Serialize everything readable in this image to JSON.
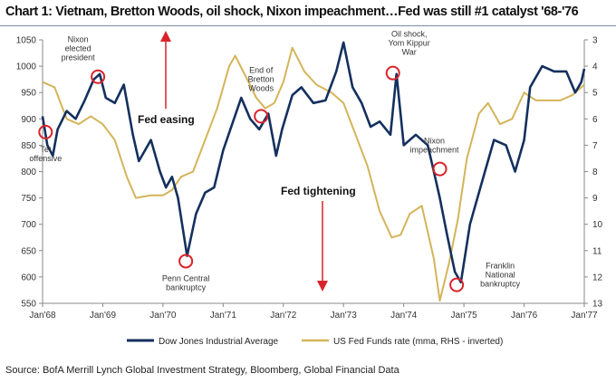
{
  "chart_data": {
    "type": "line",
    "title": "Chart 1: Vietnam, Bretton Woods, oil shock, Nixon impeachment…Fed was still #1 catalyst '68-'76",
    "x_ticks": [
      "Jan'68",
      "Jan'69",
      "Jan'70",
      "Jan'71",
      "Jan'72",
      "Jan'73",
      "Jan'74",
      "Jan'75",
      "Jan'76",
      "Jan'77"
    ],
    "xlim": [
      1968,
      1977
    ],
    "y_left": {
      "lim": [
        550,
        1050
      ],
      "ticks": [
        550,
        600,
        650,
        700,
        750,
        800,
        850,
        900,
        950,
        1000,
        1050
      ]
    },
    "y_right": {
      "lim": [
        3,
        13
      ],
      "inverted": true,
      "ticks": [
        3,
        4,
        5,
        6,
        7,
        8,
        9,
        10,
        11,
        12,
        13
      ]
    },
    "grid": false,
    "legend_position": "bottom",
    "series": [
      {
        "name": "Dow Jones Industrial Average",
        "axis": "left",
        "color": "#14305e",
        "x": [
          1968.0,
          1968.08,
          1968.17,
          1968.25,
          1968.4,
          1968.55,
          1968.7,
          1968.85,
          1968.95,
          1969.05,
          1969.2,
          1969.35,
          1969.5,
          1969.6,
          1969.8,
          1969.95,
          1970.05,
          1970.15,
          1970.25,
          1970.4,
          1970.55,
          1970.7,
          1970.85,
          1971.0,
          1971.15,
          1971.3,
          1971.45,
          1971.6,
          1971.75,
          1971.88,
          1971.98,
          1972.15,
          1972.3,
          1972.5,
          1972.7,
          1972.88,
          1973.0,
          1973.15,
          1973.3,
          1973.45,
          1973.6,
          1973.78,
          1973.88,
          1974.0,
          1974.2,
          1974.4,
          1974.5,
          1974.6,
          1974.72,
          1974.85,
          1974.95,
          1975.1,
          1975.3,
          1975.5,
          1975.7,
          1975.85,
          1976.0,
          1976.1,
          1976.3,
          1976.5,
          1976.7,
          1976.85,
          1976.95,
          1977.0
        ],
        "values": [
          905,
          850,
          830,
          880,
          915,
          900,
          935,
          975,
          985,
          940,
          930,
          965,
          870,
          820,
          860,
          800,
          770,
          790,
          750,
          640,
          720,
          760,
          770,
          840,
          890,
          940,
          900,
          880,
          910,
          830,
          880,
          945,
          960,
          930,
          935,
          990,
          1045,
          960,
          930,
          885,
          895,
          870,
          985,
          850,
          870,
          850,
          800,
          750,
          680,
          610,
          590,
          700,
          780,
          860,
          850,
          800,
          860,
          960,
          1000,
          990,
          990,
          950,
          970,
          995
        ]
      },
      {
        "name": "US Fed Funds rate (mma, RHS - inverted)",
        "axis": "right",
        "color": "#d4b45a",
        "x": [
          1968.0,
          1968.2,
          1968.4,
          1968.6,
          1968.8,
          1969.0,
          1969.2,
          1969.4,
          1969.55,
          1969.8,
          1970.0,
          1970.15,
          1970.3,
          1970.5,
          1970.7,
          1970.9,
          1971.1,
          1971.2,
          1971.4,
          1971.55,
          1971.7,
          1971.85,
          1972.0,
          1972.15,
          1972.35,
          1972.55,
          1972.8,
          1973.0,
          1973.2,
          1973.4,
          1973.6,
          1973.8,
          1973.95,
          1974.1,
          1974.3,
          1974.5,
          1974.6,
          1974.75,
          1974.9,
          1975.05,
          1975.25,
          1975.4,
          1975.6,
          1975.8,
          1976.0,
          1976.2,
          1976.4,
          1976.6,
          1976.8,
          1977.0
        ],
        "values": [
          4.6,
          4.8,
          6.0,
          6.2,
          5.9,
          6.2,
          6.8,
          8.2,
          9.0,
          8.9,
          8.9,
          8.7,
          8.2,
          8.0,
          6.8,
          5.6,
          4.0,
          3.6,
          4.5,
          5.2,
          5.6,
          5.4,
          4.6,
          3.3,
          4.2,
          4.7,
          5.0,
          5.4,
          6.6,
          7.8,
          9.5,
          10.5,
          10.4,
          9.6,
          9.3,
          11.3,
          12.9,
          11.5,
          9.8,
          7.5,
          5.8,
          5.4,
          6.2,
          6.0,
          5.0,
          5.3,
          5.3,
          5.3,
          5.1,
          4.7
        ]
      }
    ],
    "annotations": [
      {
        "text": [
          "Tet",
          "offensive"
        ],
        "x": 1968.05,
        "y": 875
      },
      {
        "text": [
          "Nixon",
          "elected",
          "president"
        ],
        "x": 1968.92,
        "y": 980
      },
      {
        "text": [
          "Penn Central",
          "bankruptcy"
        ],
        "x": 1970.38,
        "y": 630
      },
      {
        "text": [
          "End of",
          "Bretton",
          "Woods"
        ],
        "x": 1971.63,
        "y": 905
      },
      {
        "text": [
          "Oil shock,",
          "Yom Kippur",
          "War"
        ],
        "x": 1973.82,
        "y": 987
      },
      {
        "text": [
          "Nixon",
          "impeachment"
        ],
        "x": 1974.6,
        "y": 805
      },
      {
        "text": [
          "Franklin",
          "National",
          "bankruptcy"
        ],
        "x": 1974.88,
        "y": 585
      }
    ],
    "arrows": [
      {
        "text": "Fed easing",
        "direction": "up"
      },
      {
        "text": "Fed tightening",
        "direction": "down"
      }
    ]
  },
  "source": "Source: BofA Merrill Lynch Global Investment Strategy, Bloomberg, Global Financial Data"
}
